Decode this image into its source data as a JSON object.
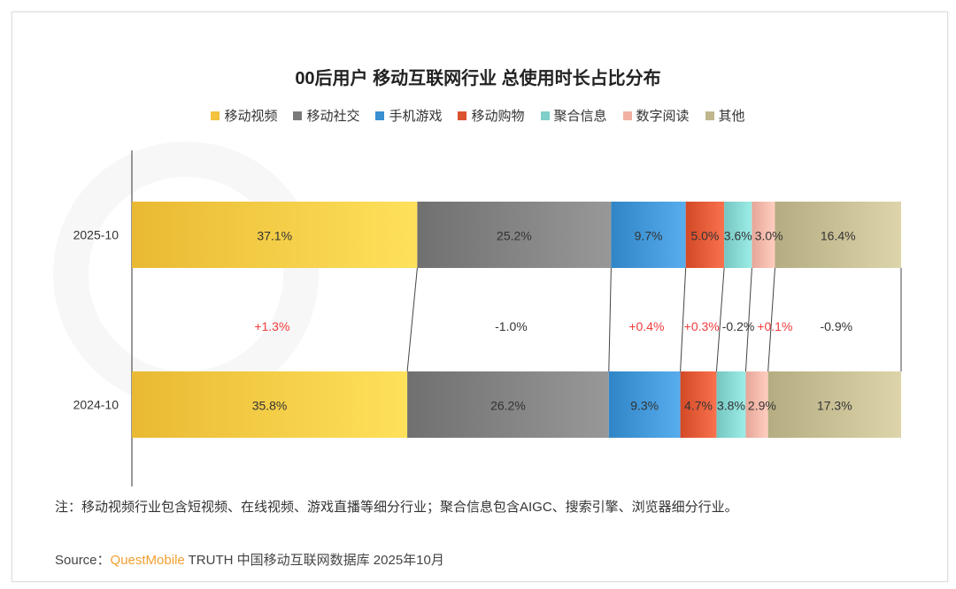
{
  "chart_data": {
    "type": "bar",
    "stacked": true,
    "orientation": "horizontal",
    "normalized_percent": true,
    "title": "00后用户 移动互联网行业 总使用时长占比分布",
    "categories": [
      "2025-10",
      "2024-10"
    ],
    "series": [
      {
        "name": "移动视频",
        "color": "#f3c33d",
        "values": [
          37.1,
          35.8
        ],
        "labels": [
          "37.1%",
          "35.8%"
        ],
        "change": "+1.3%"
      },
      {
        "name": "移动社交",
        "color": "#7a7a7a",
        "values": [
          25.2,
          26.2
        ],
        "labels": [
          "25.2%",
          "26.2%"
        ],
        "change": "-1.0%"
      },
      {
        "name": "手机游戏",
        "color": "#3a8fd0",
        "values": [
          9.7,
          9.3
        ],
        "labels": [
          "9.7%",
          "9.3%"
        ],
        "change": "+0.4%"
      },
      {
        "name": "移动购物",
        "color": "#dc5330",
        "values": [
          5.0,
          4.7
        ],
        "labels": [
          "5.0%",
          "4.7%"
        ],
        "change": "+0.3%"
      },
      {
        "name": "聚合信息",
        "color": "#7fcfca",
        "values": [
          3.6,
          3.8
        ],
        "labels": [
          "3.6%",
          "3.8%"
        ],
        "change": "-0.2%"
      },
      {
        "name": "数字阅读",
        "color": "#f0b0a2",
        "values": [
          3.0,
          2.9
        ],
        "labels": [
          "3.0%",
          "2.9%"
        ],
        "change": "+0.1%"
      },
      {
        "name": "其他",
        "color": "#bfb68c",
        "values": [
          16.4,
          17.3
        ],
        "labels": [
          "16.4%",
          "17.3%"
        ],
        "change": "-0.9%"
      }
    ],
    "positive_change_color": "#f03c3c",
    "negative_change_color": "#333333",
    "legend_position": "top",
    "xlim": [
      0,
      100
    ]
  },
  "note": "注：移动视频行业包含短视频、在线视频、游戏直播等细分行业；聚合信息包含AIGC、搜索引擎、浏览器细分行业。",
  "source": {
    "label": "Source：",
    "brand": "QuestMobile",
    "text": " TRUTH 中国移动互联网数据库 2025年10月"
  },
  "watermark": "QUESTMOBILE"
}
